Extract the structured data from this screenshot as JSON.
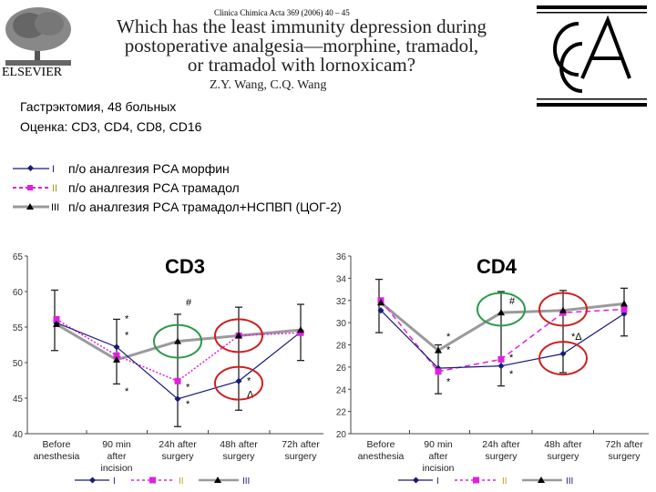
{
  "header": {
    "journal": "Clinica Chimica Acta 369 (2006) 40 – 45",
    "title_lines": [
      "Which has the least immunity depression during",
      "postoperative analgesia—morphine, tramadol,",
      "or tramadol with lornoxicam?"
    ],
    "authors": "Z.Y. Wang, C.Q. Wang",
    "publisher_logo": "ELSEVIER",
    "journal_logo": "CCA"
  },
  "info": {
    "line1": "Гастрэктомия, 48 больных",
    "line2": "Оценка:  CD3, CD4, CD8, CD16"
  },
  "legend": [
    {
      "numeral": "I",
      "label": "п/о аналгезия PCA морфин",
      "color": "#1a1a7a",
      "dash": "",
      "marker": "diamond"
    },
    {
      "numeral": "II",
      "label": "п/о аналгезия PCA трамадол",
      "color": "#e020e0",
      "dash": "4,3",
      "marker": "square"
    },
    {
      "numeral": "III",
      "label": "п/о аналгезия PCA трамадол+НСПВП (ЦОГ-2)",
      "color": "#9a9a9a",
      "dash": "",
      "marker": "triangle"
    }
  ],
  "chart_data": [
    {
      "type": "line",
      "title": "CD3",
      "categories": [
        "Before anesthesia",
        "90 min after incision",
        "24h after surgery",
        "48h after surgery",
        "72h after surgery"
      ],
      "ylim": [
        40,
        65
      ],
      "yticks": [
        40,
        45,
        50,
        55,
        60,
        65
      ],
      "series": [
        {
          "name": "I",
          "values": [
            55.6,
            52.2,
            44.9,
            47.4,
            54.3
          ]
        },
        {
          "name": "II",
          "values": [
            56.1,
            51.0,
            47.4,
            53.8,
            54.2
          ]
        },
        {
          "name": "III",
          "values": [
            55.4,
            50.4,
            53.0,
            53.8,
            54.6
          ]
        }
      ],
      "error_ranges": [
        [
          51.7,
          60.2
        ],
        [
          47.0,
          56.1
        ],
        [
          41.0,
          56.8
        ],
        [
          43.3,
          57.8
        ],
        [
          50.3,
          58.2
        ]
      ],
      "annotations": [
        {
          "text": "*",
          "category": 1,
          "value": 56.2
        },
        {
          "text": "*",
          "category": 1,
          "value": 53.9
        },
        {
          "text": "*",
          "category": 1,
          "value": 46.0
        },
        {
          "text": "#",
          "category": 2,
          "value": 58.5
        },
        {
          "text": "*",
          "category": 2,
          "value": 46.6
        },
        {
          "text": "*",
          "category": 2,
          "value": 44.2
        },
        {
          "text": "*",
          "category": 3,
          "value": 47.5
        },
        {
          "text": "Δ",
          "category": 3,
          "value": 45.6
        }
      ],
      "highlights": [
        {
          "category": 2,
          "value": 53.0,
          "color": "#2a9a4a"
        },
        {
          "category": 3,
          "value": 53.8,
          "color": "#cc2020"
        },
        {
          "category": 3,
          "value": 47.1,
          "color": "#cc2020"
        }
      ],
      "legend": [
        "I",
        "II",
        "III"
      ],
      "legend_position": "bottom",
      "grid": false
    },
    {
      "type": "line",
      "title": "CD4",
      "categories": [
        "Before anesthesia",
        "90 min after incision",
        "24h after surgery",
        "48h after surgery",
        "72h after surgery"
      ],
      "ylim": [
        20,
        36
      ],
      "yticks": [
        20,
        22,
        24,
        26,
        28,
        30,
        32,
        34,
        36
      ],
      "series": [
        {
          "name": "I",
          "values": [
            31.1,
            25.9,
            26.1,
            27.2,
            30.8
          ]
        },
        {
          "name": "II",
          "values": [
            32.0,
            25.6,
            26.7,
            30.9,
            31.2
          ]
        },
        {
          "name": "III",
          "values": [
            31.8,
            27.5,
            30.9,
            31.1,
            31.7
          ]
        }
      ],
      "error_ranges": [
        [
          29.1,
          33.9
        ],
        [
          23.6,
          28.0
        ],
        [
          24.3,
          32.8
        ],
        [
          25.5,
          32.9
        ],
        [
          28.8,
          33.1
        ]
      ],
      "annotations": [
        {
          "text": "*",
          "category": 1,
          "value": 28.8
        },
        {
          "text": "*",
          "category": 1,
          "value": 27.6
        },
        {
          "text": "*",
          "category": 1,
          "value": 24.7
        },
        {
          "text": "#",
          "category": 2,
          "value": 32.0
        },
        {
          "text": "*",
          "category": 2,
          "value": 26.9
        },
        {
          "text": "*",
          "category": 2,
          "value": 25.4
        },
        {
          "text": "*Δ",
          "category": 3,
          "value": 28.8
        }
      ],
      "highlights": [
        {
          "category": 2,
          "value": 31.2,
          "color": "#2a9a4a"
        },
        {
          "category": 3,
          "value": 31.2,
          "color": "#cc2020"
        },
        {
          "category": 3,
          "value": 26.8,
          "color": "#cc2020"
        }
      ],
      "legend": [
        "I",
        "II",
        "III"
      ],
      "legend_position": "bottom",
      "grid": false
    }
  ]
}
